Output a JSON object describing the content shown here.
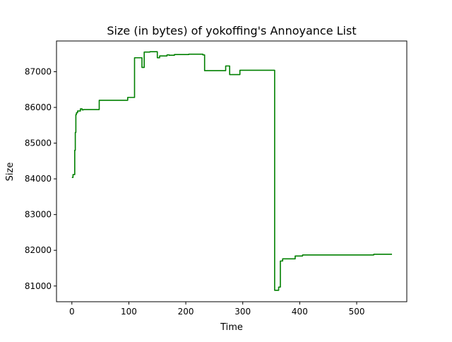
{
  "chart_data": {
    "type": "line",
    "title": "Size (in bytes) of yokoffing's Annoyance List",
    "xlabel": "Time",
    "ylabel": "Size",
    "xlim": [
      -27,
      588
    ],
    "ylim": [
      80560,
      87860
    ],
    "xticks": [
      0,
      100,
      200,
      300,
      400,
      500
    ],
    "yticks": [
      81000,
      82000,
      83000,
      84000,
      85000,
      86000,
      87000
    ],
    "grid": false,
    "legend": "none",
    "line_color": "#008000",
    "series": [
      {
        "x": [
          0,
          2,
          2,
          5,
          5,
          6,
          6,
          7,
          7,
          8,
          8,
          10,
          10,
          12,
          12,
          15,
          15,
          18,
          18,
          20,
          20,
          48,
          48,
          98,
          98,
          110,
          110,
          123,
          123,
          127,
          127,
          137,
          137,
          150,
          150,
          154,
          154,
          167,
          167,
          171,
          171,
          180,
          180,
          205,
          205,
          230,
          230,
          233,
          233,
          270,
          270,
          277,
          277,
          295,
          295,
          356,
          356,
          359,
          359,
          363,
          363,
          366,
          366,
          370,
          370,
          392,
          392,
          405,
          405,
          530,
          530,
          562
        ],
        "y": [
          84040,
          84040,
          84120,
          84120,
          84800,
          84800,
          85300,
          85300,
          85800,
          85800,
          85850,
          85850,
          85900,
          85900,
          85900,
          85900,
          85960,
          85960,
          85930,
          85930,
          85940,
          85940,
          86200,
          86200,
          86280,
          86280,
          87390,
          87390,
          87120,
          87120,
          87550,
          87550,
          87560,
          87560,
          87390,
          87390,
          87440,
          87440,
          87470,
          87470,
          87460,
          87460,
          87480,
          87480,
          87490,
          87490,
          87470,
          87470,
          87030,
          87030,
          87160,
          87160,
          86920,
          86920,
          87040,
          87040,
          80880,
          80880,
          80880,
          80880,
          80970,
          80970,
          81700,
          81700,
          81760,
          81760,
          81840,
          81840,
          81870,
          81870,
          81890,
          81890
        ]
      }
    ]
  }
}
